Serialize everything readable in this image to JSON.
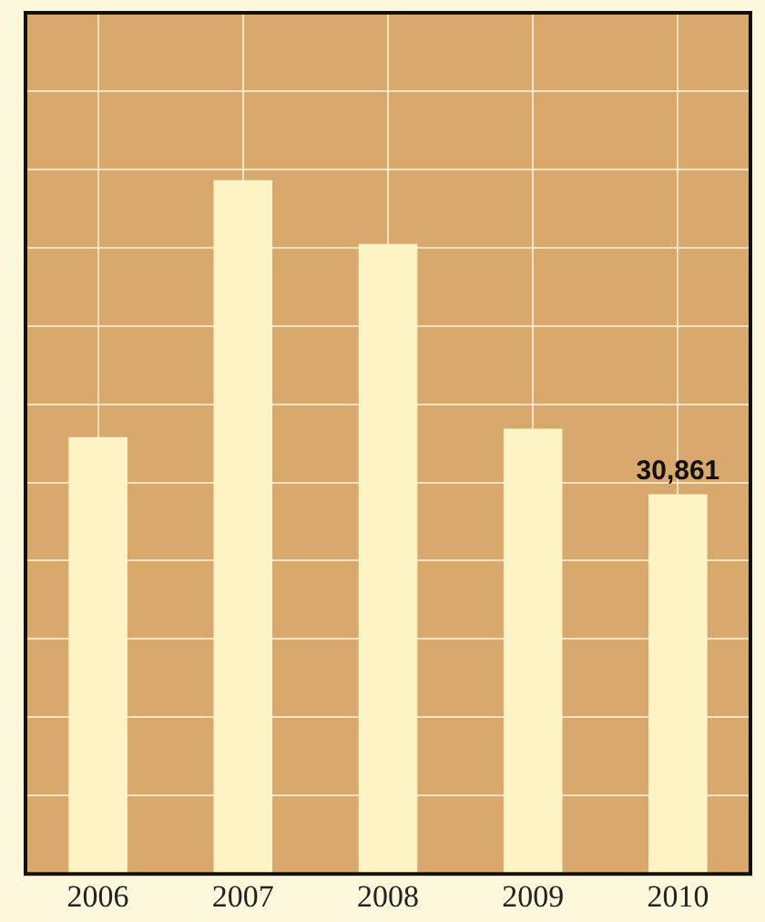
{
  "chart_data": {
    "type": "bar",
    "categories": [
      "2006",
      "2007",
      "2008",
      "2009",
      "2010"
    ],
    "values": [
      35500,
      56400,
      51200,
      36200,
      30861
    ],
    "value_labels": [
      null,
      null,
      null,
      null,
      "30,861"
    ],
    "color": "#fdf3c4",
    "grid": true,
    "tick_labels": "x"
  }
}
